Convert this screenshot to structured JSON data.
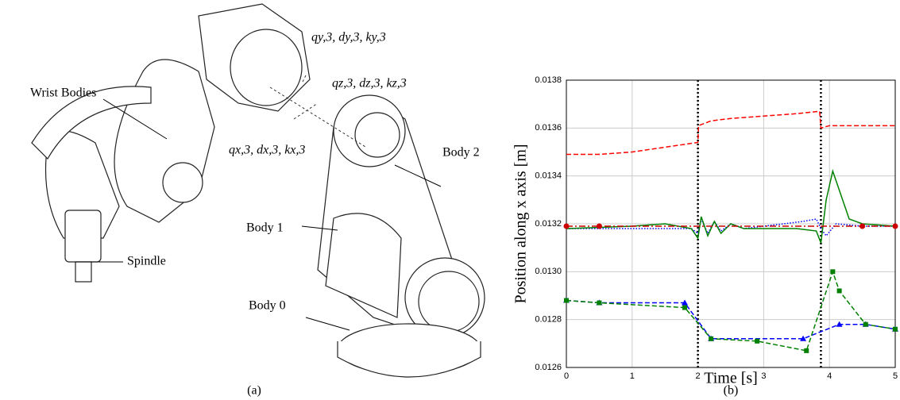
{
  "figure": {
    "left": {
      "labels": {
        "wrist": "Wrist Bodies",
        "spindle": "Spindle",
        "body0": "Body 0",
        "body1": "Body 1",
        "body2": "Body 2",
        "spring_y": "qy,3, dy,3, ky,3",
        "spring_z": "qz,3, dz,3, kz,3",
        "spring_x": "qx,3, dx,3, kx,3"
      },
      "caption": "(a)"
    },
    "caption_b": "(b)"
  },
  "chart_data": {
    "type": "line",
    "xlabel": "Time [s]",
    "ylabel": "Position along x axis [m]",
    "xlim": [
      0,
      5
    ],
    "xticks": [
      0,
      1,
      2,
      3,
      4,
      5
    ],
    "ylim": [
      0.0126,
      0.0138
    ],
    "yticks": [
      0.0126,
      0.0128,
      {
        "value": 0.013,
        "label": "0.0130"
      },
      0.0132,
      0.0134,
      0.0136,
      0.0138
    ],
    "grid": true,
    "vlines": [
      2,
      3.87
    ],
    "series": [
      {
        "color": "#ff0000",
        "dash": "dashed",
        "x": [
          0,
          0.5,
          1,
          1.5,
          2,
          2.01,
          2.2,
          2.5,
          3,
          3.5,
          3.85,
          3.87,
          4,
          4.3,
          5
        ],
        "values": [
          0.01349,
          0.01349,
          0.0135,
          0.01352,
          0.01354,
          0.01361,
          0.01363,
          0.01364,
          0.01365,
          0.01366,
          0.01367,
          0.0136,
          0.01361,
          0.01361,
          0.01361
        ]
      },
      {
        "color": "#0000ff",
        "dash": "dotted",
        "x": [
          0,
          1,
          1.9,
          2,
          2.05,
          2.15,
          2.25,
          2.35,
          2.5,
          2.7,
          3,
          3.3,
          3.6,
          3.8,
          3.87,
          3.95,
          4.1,
          4.5,
          5
        ],
        "values": [
          0.01318,
          0.01318,
          0.01318,
          0.01316,
          0.01322,
          0.01316,
          0.01321,
          0.01317,
          0.0132,
          0.01318,
          0.01319,
          0.0132,
          0.01321,
          0.01322,
          0.01318,
          0.01315,
          0.0132,
          0.01319,
          0.01319
        ]
      },
      {
        "color": "#008000",
        "dash": "solid",
        "x": [
          0,
          1,
          1.5,
          1.9,
          2,
          2.05,
          2.15,
          2.25,
          2.35,
          2.5,
          2.7,
          3,
          3.5,
          3.8,
          3.87,
          3.95,
          4.05,
          4.15,
          4.3,
          4.5,
          5
        ],
        "values": [
          0.01318,
          0.01319,
          0.0132,
          0.01318,
          0.01314,
          0.01323,
          0.01315,
          0.01321,
          0.01316,
          0.0132,
          0.01318,
          0.01318,
          0.01318,
          0.01317,
          0.01312,
          0.0133,
          0.01342,
          0.01334,
          0.01322,
          0.0132,
          0.01319
        ]
      },
      {
        "color": "#cc0000",
        "dash": "dashdot",
        "marker": "circle",
        "x": [
          0,
          0.5,
          4.5,
          5
        ],
        "values": [
          0.01319,
          0.01319,
          0.01319,
          0.01319
        ]
      },
      {
        "color": "#0000ff",
        "dash": "dashed",
        "marker": "triangle",
        "x": [
          0,
          0.5,
          1.8,
          2.2,
          3.6,
          4.15,
          4.55,
          5
        ],
        "values": [
          0.01288,
          0.01287,
          0.01287,
          0.01272,
          0.01272,
          0.01278,
          0.01278,
          0.01276
        ]
      },
      {
        "color": "#008000",
        "dash": "dashed",
        "marker": "square",
        "x": [
          0,
          0.5,
          1.8,
          2.2,
          2.9,
          3.65,
          4.05,
          4.15,
          4.55,
          5
        ],
        "values": [
          0.01288,
          0.01287,
          0.01285,
          0.01272,
          0.01271,
          0.01267,
          0.013,
          0.01292,
          0.01278,
          0.01276
        ]
      }
    ]
  }
}
